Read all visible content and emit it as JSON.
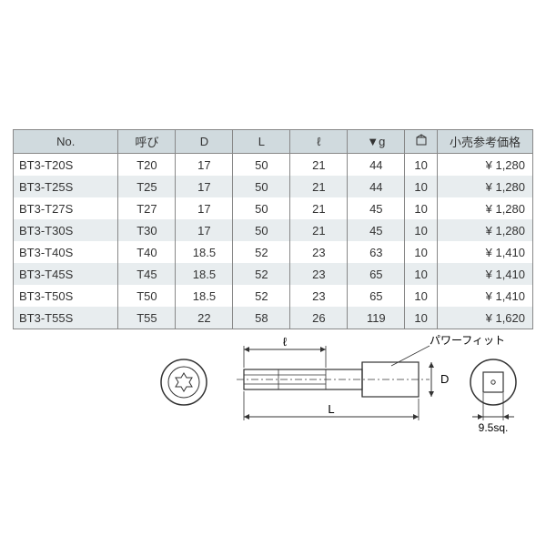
{
  "table": {
    "headers": {
      "no": "No.",
      "yobi": "呼び",
      "d": "D",
      "l": "L",
      "ell": "ℓ",
      "g": "▼g",
      "box": "⌑",
      "price": "小売参考価格"
    },
    "rows": [
      {
        "no": "BT3-T20S",
        "yobi": "T20",
        "d": "17",
        "l": "50",
        "ell": "21",
        "g": "44",
        "box": "10",
        "price": "¥  1,280"
      },
      {
        "no": "BT3-T25S",
        "yobi": "T25",
        "d": "17",
        "l": "50",
        "ell": "21",
        "g": "44",
        "box": "10",
        "price": "¥  1,280"
      },
      {
        "no": "BT3-T27S",
        "yobi": "T27",
        "d": "17",
        "l": "50",
        "ell": "21",
        "g": "45",
        "box": "10",
        "price": "¥  1,280"
      },
      {
        "no": "BT3-T30S",
        "yobi": "T30",
        "d": "17",
        "l": "50",
        "ell": "21",
        "g": "45",
        "box": "10",
        "price": "¥  1,280"
      },
      {
        "no": "BT3-T40S",
        "yobi": "T40",
        "d": "18.5",
        "l": "52",
        "ell": "23",
        "g": "63",
        "box": "10",
        "price": "¥  1,410"
      },
      {
        "no": "BT3-T45S",
        "yobi": "T45",
        "d": "18.5",
        "l": "52",
        "ell": "23",
        "g": "65",
        "box": "10",
        "price": "¥  1,410"
      },
      {
        "no": "BT3-T50S",
        "yobi": "T50",
        "d": "18.5",
        "l": "52",
        "ell": "23",
        "g": "65",
        "box": "10",
        "price": "¥  1,410"
      },
      {
        "no": "BT3-T55S",
        "yobi": "T55",
        "d": "22",
        "l": "58",
        "ell": "26",
        "g": "119",
        "box": "10",
        "price": "¥  1,620"
      }
    ],
    "colors": {
      "header_bg": "#d0dade",
      "row_even": "#ffffff",
      "row_odd": "#e8edef",
      "border": "#888888",
      "text": "#333333"
    }
  },
  "diagram": {
    "label_power": "パワーフィット",
    "label_ell": "ℓ",
    "label_L": "L",
    "label_D": "D",
    "label_sq": "9.5sq.",
    "stroke": "#333333"
  }
}
